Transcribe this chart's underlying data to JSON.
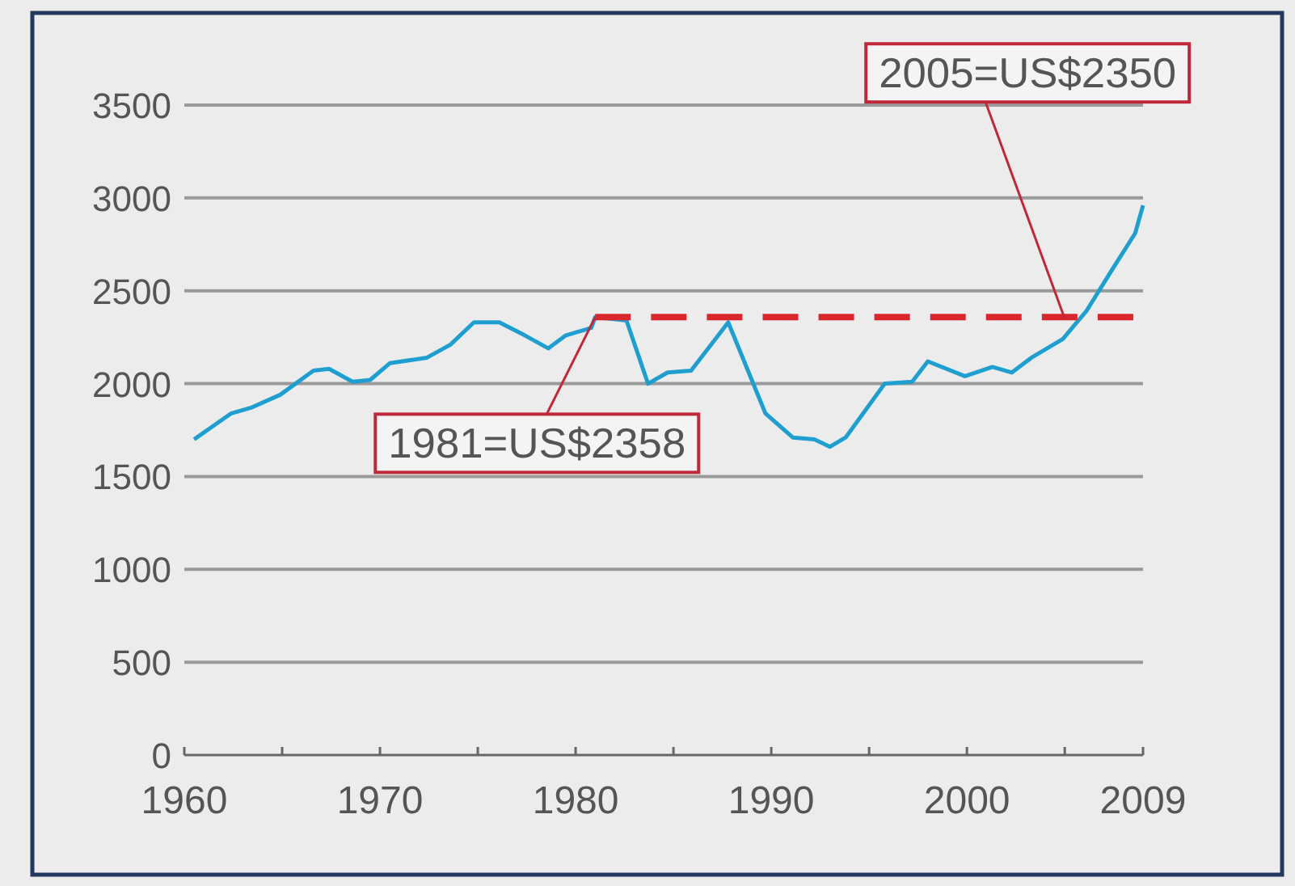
{
  "chart_data": {
    "type": "line",
    "x": [
      1960.5,
      1962.4,
      1963.4,
      1964.9,
      1966.6,
      1967.4,
      1968.6,
      1969.5,
      1970.5,
      1972.4,
      1973.6,
      1974.8,
      1976.1,
      1977.4,
      1978.6,
      1979.5,
      1980.8,
      1981,
      1982.6,
      1983.7,
      1984.7,
      1985.9,
      1987.8,
      1989.7,
      1991.1,
      1992.2,
      1993,
      1993.8,
      1995.8,
      1997.2,
      1998,
      1999.9,
      2001.3,
      2002.3,
      2003.3,
      2004.9,
      2006.1,
      2007.4,
      2008.6,
      2009
    ],
    "series": [
      {
        "color": "#1e9fd0",
        "values": [
          1700,
          1840,
          1870,
          1940,
          2070,
          2080,
          2010,
          2020,
          2110,
          2140,
          2210,
          2330,
          2330,
          2260,
          2190,
          2260,
          2300,
          2358,
          2340,
          2000,
          2060,
          2070,
          2330,
          1840,
          1710,
          1700,
          1660,
          1710,
          2000,
          2010,
          2120,
          2040,
          2090,
          2060,
          2140,
          2240,
          2390,
          2610,
          2810,
          2960
        ]
      },
      {
        "type": "line",
        "color": "#d9262c",
        "line_style": "dashed",
        "x": [
          1981,
          2008.5
        ],
        "values": [
          2358,
          2358
        ]
      }
    ],
    "xlim": [
      1960,
      2009
    ],
    "xticks": [
      1960,
      {
        "value": 1965,
        "label": null
      },
      1970,
      {
        "value": 1975,
        "label": null
      },
      1980,
      {
        "value": 1985,
        "label": null
      },
      1990,
      {
        "value": 1995,
        "label": null
      },
      2000,
      {
        "value": 2005,
        "label": null
      },
      2009
    ],
    "ylim": [
      0,
      3500
    ],
    "yticks": [
      0,
      500,
      1000,
      1500,
      2000,
      2500,
      3000,
      3500
    ],
    "grid": "y",
    "annotations": [
      {
        "text": "1981=US$2358",
        "x": 1981,
        "y": 2358
      },
      {
        "text": "2005=US$2350",
        "x": 2005,
        "y": 2350
      }
    ]
  }
}
